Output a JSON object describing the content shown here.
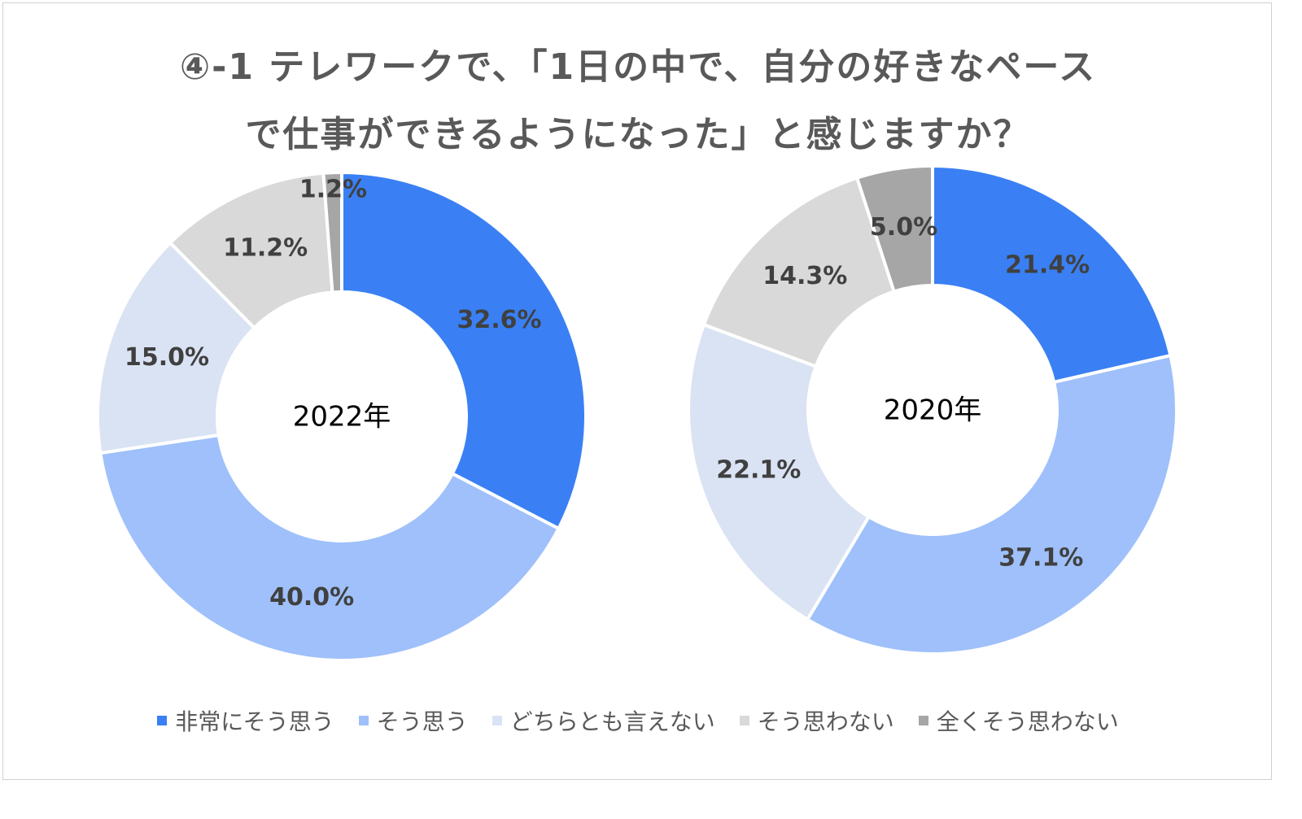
{
  "title_line1": "④-1 テレワークで、「1日の中で、自分の好きなペース",
  "title_line2": "で仕事ができるようになった」と感じますか？",
  "chart_data": [
    {
      "type": "pie",
      "variant": "donut",
      "center_label": "2022年",
      "categories": [
        "非常にそう思う",
        "そう思う",
        "どちらとも言えない",
        "そう思わない",
        "全くそう思わない"
      ],
      "values": [
        32.6,
        40.0,
        15.0,
        11.2,
        1.2
      ],
      "labels": [
        "32.6%",
        "40.0%",
        "15.0%",
        "11.2%",
        "1.2%"
      ]
    },
    {
      "type": "pie",
      "variant": "donut",
      "center_label": "2020年",
      "categories": [
        "非常にそう思う",
        "そう思う",
        "どちらとも言えない",
        "そう思わない",
        "全くそう思わない"
      ],
      "values": [
        21.4,
        37.1,
        22.1,
        14.3,
        5.0
      ],
      "labels": [
        "21.4%",
        "37.1%",
        "22.1%",
        "14.3%",
        "5.0%"
      ]
    }
  ],
  "legend": [
    {
      "label": "非常にそう思う",
      "color": "#3a80f4"
    },
    {
      "label": "そう思う",
      "color": "#9fc0fa"
    },
    {
      "label": "どちらとも言えない",
      "color": "#dae3f4"
    },
    {
      "label": "そう思わない",
      "color": "#d9d9d9"
    },
    {
      "label": "全くそう思わない",
      "color": "#a6a6a6"
    }
  ]
}
